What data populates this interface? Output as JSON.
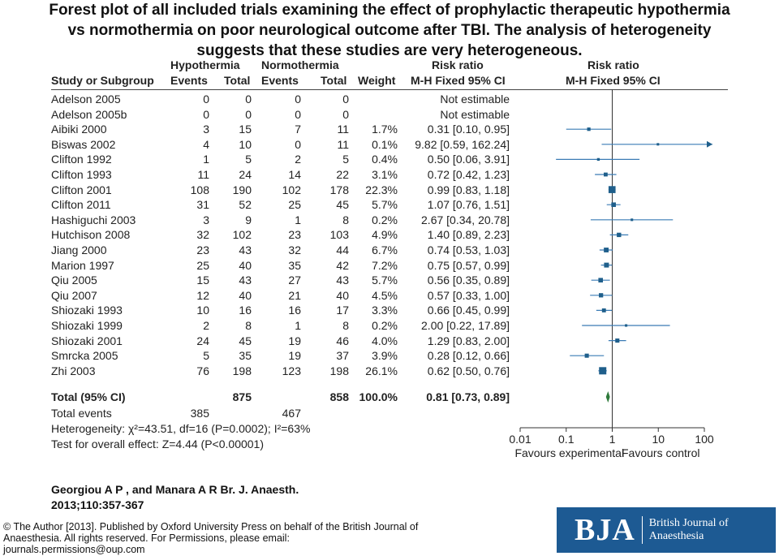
{
  "title_lines": [
    "Forest plot of all included trials examining the effect of prophylactic therapeutic hypothermia",
    "vs normothermia on poor neurological outcome after TBI. The analysis of heterogeneity",
    "suggests that these studies are very heterogeneous."
  ],
  "headers": {
    "hypothermia": "Hypothermia",
    "normothermia": "Normothermia",
    "risk_ratio_left": "Risk ratio",
    "risk_ratio_right": "Risk ratio",
    "study": "Study or Subgroup",
    "events1": "Events",
    "total1": "Total",
    "events2": "Events",
    "total2": "Total",
    "weight": "Weight",
    "method_left": "M-H Fixed 95% CI",
    "method_right": "M-H Fixed 95% CI"
  },
  "rows": [
    {
      "study": "Adelson 2005",
      "e1": "0",
      "t1": "0",
      "e2": "0",
      "t2": "0",
      "weight": "",
      "ci": "Not estimable",
      "rr": null,
      "lo": null,
      "hi": null,
      "w": 0
    },
    {
      "study": "Adelson 2005b",
      "e1": "0",
      "t1": "0",
      "e2": "0",
      "t2": "0",
      "weight": "",
      "ci": "Not estimable",
      "rr": null,
      "lo": null,
      "hi": null,
      "w": 0
    },
    {
      "study": "Aibiki 2000",
      "e1": "3",
      "t1": "15",
      "e2": "7",
      "t2": "11",
      "weight": "1.7%",
      "ci": "0.31 [0.10, 0.95]",
      "rr": 0.31,
      "lo": 0.1,
      "hi": 0.95,
      "w": 1.7
    },
    {
      "study": "Biswas 2002",
      "e1": "4",
      "t1": "10",
      "e2": "0",
      "t2": "11",
      "weight": "0.1%",
      "ci": "9.82 [0.59, 162.24]",
      "rr": 9.82,
      "lo": 0.59,
      "hi": 162.24,
      "w": 0.1
    },
    {
      "study": "Clifton 1992",
      "e1": "1",
      "t1": "5",
      "e2": "2",
      "t2": "5",
      "weight": "0.4%",
      "ci": "0.50 [0.06, 3.91]",
      "rr": 0.5,
      "lo": 0.06,
      "hi": 3.91,
      "w": 0.4
    },
    {
      "study": "Clifton 1993",
      "e1": "11",
      "t1": "24",
      "e2": "14",
      "t2": "22",
      "weight": "3.1%",
      "ci": "0.72 [0.42, 1.23]",
      "rr": 0.72,
      "lo": 0.42,
      "hi": 1.23,
      "w": 3.1
    },
    {
      "study": "Clifton 2001",
      "e1": "108",
      "t1": "190",
      "e2": "102",
      "t2": "178",
      "weight": "22.3%",
      "ci": "0.99 [0.83, 1.18]",
      "rr": 0.99,
      "lo": 0.83,
      "hi": 1.18,
      "w": 22.3
    },
    {
      "study": "Clifton 2011",
      "e1": "31",
      "t1": "52",
      "e2": "25",
      "t2": "45",
      "weight": "5.7%",
      "ci": "1.07 [0.76, 1.51]",
      "rr": 1.07,
      "lo": 0.76,
      "hi": 1.51,
      "w": 5.7
    },
    {
      "study": "Hashiguchi 2003",
      "e1": "3",
      "t1": "9",
      "e2": "1",
      "t2": "8",
      "weight": "0.2%",
      "ci": "2.67 [0.34, 20.78]",
      "rr": 2.67,
      "lo": 0.34,
      "hi": 20.78,
      "w": 0.2
    },
    {
      "study": "Hutchison 2008",
      "e1": "32",
      "t1": "102",
      "e2": "23",
      "t2": "103",
      "weight": "4.9%",
      "ci": "1.40 [0.89, 2.23]",
      "rr": 1.4,
      "lo": 0.89,
      "hi": 2.23,
      "w": 4.9
    },
    {
      "study": "Jiang 2000",
      "e1": "23",
      "t1": "43",
      "e2": "32",
      "t2": "44",
      "weight": "6.7%",
      "ci": "0.74 [0.53, 1.03]",
      "rr": 0.74,
      "lo": 0.53,
      "hi": 1.03,
      "w": 6.7
    },
    {
      "study": "Marion 1997",
      "e1": "25",
      "t1": "40",
      "e2": "35",
      "t2": "42",
      "weight": "7.2%",
      "ci": "0.75 [0.57, 0.99]",
      "rr": 0.75,
      "lo": 0.57,
      "hi": 0.99,
      "w": 7.2
    },
    {
      "study": "Qiu 2005",
      "e1": "15",
      "t1": "43",
      "e2": "27",
      "t2": "43",
      "weight": "5.7%",
      "ci": "0.56 [0.35, 0.89]",
      "rr": 0.56,
      "lo": 0.35,
      "hi": 0.89,
      "w": 5.7
    },
    {
      "study": "Qiu 2007",
      "e1": "12",
      "t1": "40",
      "e2": "21",
      "t2": "40",
      "weight": "4.5%",
      "ci": "0.57 [0.33, 1.00]",
      "rr": 0.57,
      "lo": 0.33,
      "hi": 1.0,
      "w": 4.5
    },
    {
      "study": "Shiozaki 1993",
      "e1": "10",
      "t1": "16",
      "e2": "16",
      "t2": "17",
      "weight": "3.3%",
      "ci": "0.66 [0.45, 0.99]",
      "rr": 0.66,
      "lo": 0.45,
      "hi": 0.99,
      "w": 3.3
    },
    {
      "study": "Shiozaki 1999",
      "e1": "2",
      "t1": "8",
      "e2": "1",
      "t2": "8",
      "weight": "0.2%",
      "ci": "2.00 [0.22, 17.89]",
      "rr": 2.0,
      "lo": 0.22,
      "hi": 17.89,
      "w": 0.2
    },
    {
      "study": "Shiozaki 2001",
      "e1": "24",
      "t1": "45",
      "e2": "19",
      "t2": "46",
      "weight": "4.0%",
      "ci": "1.29 [0.83, 2.00]",
      "rr": 1.29,
      "lo": 0.83,
      "hi": 2.0,
      "w": 4.0
    },
    {
      "study": "Smrcka 2005",
      "e1": "5",
      "t1": "35",
      "e2": "19",
      "t2": "37",
      "weight": "3.9%",
      "ci": "0.28 [0.12, 0.66]",
      "rr": 0.28,
      "lo": 0.12,
      "hi": 0.66,
      "w": 3.9
    },
    {
      "study": "Zhi 2003",
      "e1": "76",
      "t1": "198",
      "e2": "123",
      "t2": "198",
      "weight": "26.1%",
      "ci": "0.62 [0.50, 0.76]",
      "rr": 0.62,
      "lo": 0.5,
      "hi": 0.76,
      "w": 26.1
    }
  ],
  "total": {
    "label": "Total (95% CI)",
    "t1": "875",
    "t2": "858",
    "weight": "100.0%",
    "ci": "0.81 [0.73, 0.89]",
    "rr": 0.81,
    "lo": 0.73,
    "hi": 0.89
  },
  "total_events": {
    "label": "Total events",
    "e1": "385",
    "e2": "467"
  },
  "heterogeneity_text": "Heterogeneity: χ²=43.51, df=16 (P=0.0002); I²=63%",
  "overall_effect_text": "Test for overall effect: Z=4.44 (P<0.00001)",
  "citation": {
    "line1": "Georgiou A P , and Manara A R Br. J. Anaesth.",
    "line2": "2013;110:357-367"
  },
  "copyright": "© The Author [2013]. Published by Oxford University Press on behalf of the British Journal of Anaesthesia. All rights reserved. For Permissions, please email: journals.permissions@oup.com",
  "brand": {
    "logo": "BJA",
    "name": "British Journal of Anaesthesia",
    "color": "#1d5a93"
  },
  "colors": {
    "marker": "#1f5f8b",
    "ci_line": "#3a7bb5",
    "diamond": "#2f7a3b"
  },
  "chart_data": {
    "type": "forest",
    "scale": "log",
    "xlim": [
      0.01,
      100
    ],
    "xticks": [
      0.01,
      0.1,
      1,
      10,
      100
    ],
    "xtick_labels": [
      "0.01",
      "0.1",
      "1",
      "10",
      "100"
    ],
    "xlabel_left": "Favours experimental",
    "xlabel_right": "Favours control",
    "studies": [
      "Adelson 2005",
      "Adelson 2005b",
      "Aibiki 2000",
      "Biswas 2002",
      "Clifton 1992",
      "Clifton 1993",
      "Clifton 2001",
      "Clifton 2011",
      "Hashiguchi 2003",
      "Hutchison 2008",
      "Jiang 2000",
      "Marion 1997",
      "Qiu 2005",
      "Qiu 2007",
      "Shiozaki 1993",
      "Shiozaki 1999",
      "Shiozaki 2001",
      "Smrcka 2005",
      "Zhi 2003"
    ],
    "risk_ratio": [
      null,
      null,
      0.31,
      9.82,
      0.5,
      0.72,
      0.99,
      1.07,
      2.67,
      1.4,
      0.74,
      0.75,
      0.56,
      0.57,
      0.66,
      2.0,
      1.29,
      0.28,
      0.62
    ],
    "ci_low": [
      null,
      null,
      0.1,
      0.59,
      0.06,
      0.42,
      0.83,
      0.76,
      0.34,
      0.89,
      0.53,
      0.57,
      0.35,
      0.33,
      0.45,
      0.22,
      0.83,
      0.12,
      0.5
    ],
    "ci_high": [
      null,
      null,
      0.95,
      162.24,
      3.91,
      1.23,
      1.18,
      1.51,
      20.78,
      2.23,
      1.03,
      0.99,
      0.89,
      1.0,
      0.99,
      17.89,
      2.0,
      0.66,
      0.76
    ],
    "pooled": {
      "rr": 0.81,
      "lo": 0.73,
      "hi": 0.89
    }
  }
}
